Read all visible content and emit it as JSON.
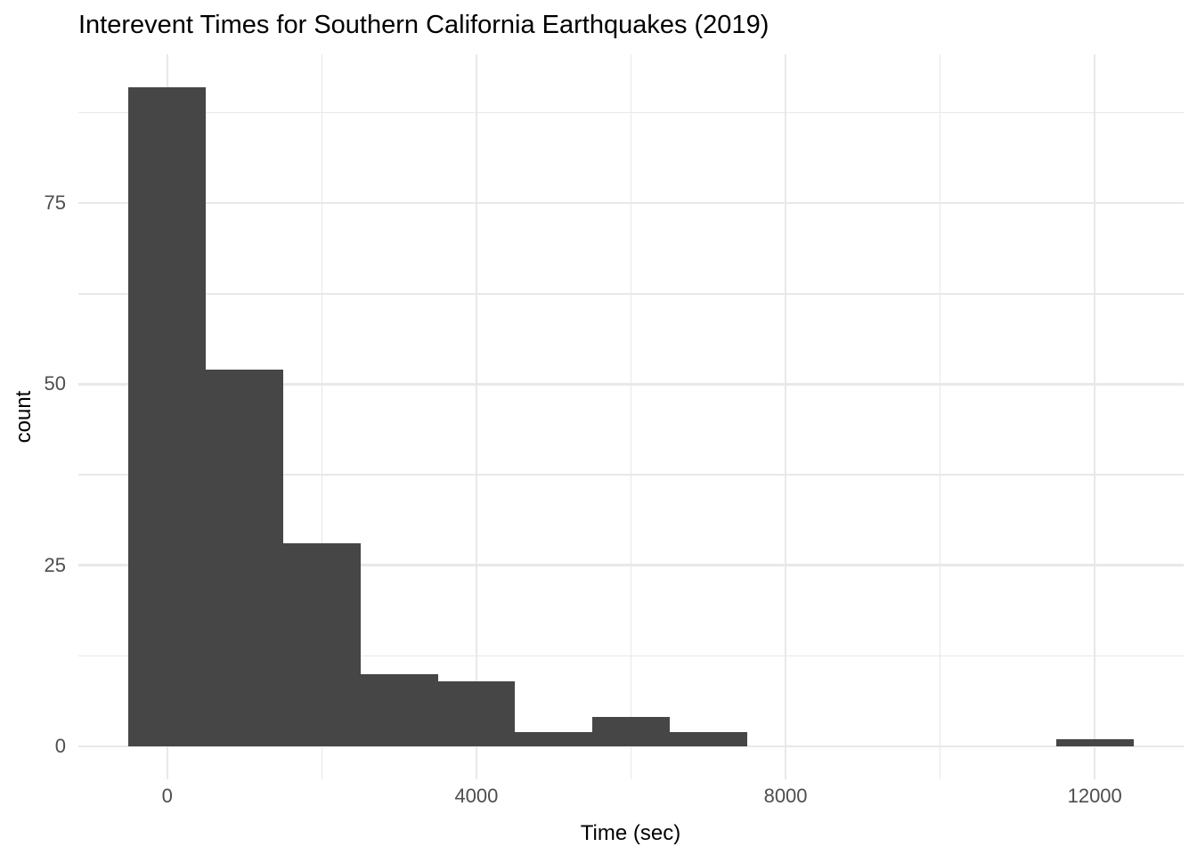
{
  "chart_data": {
    "type": "bar",
    "subtype": "histogram",
    "title": "Interevent Times for Southern California Earthquakes (2019)",
    "xlabel": "Time (sec)",
    "ylabel": "count",
    "binwidth": 1000,
    "bin_centers": [
      0,
      1000,
      2000,
      3000,
      4000,
      5000,
      6000,
      7000,
      12000
    ],
    "counts": [
      91,
      52,
      28,
      10,
      9,
      2,
      4,
      2,
      1
    ],
    "total_count": 199,
    "xlim": [
      -1150,
      13150
    ],
    "ylim": [
      -4.55,
      95.55
    ],
    "x_major_ticks": [
      0,
      4000,
      8000,
      12000
    ],
    "x_minor_ticks": [
      2000,
      6000,
      10000
    ],
    "y_major_ticks": [
      0,
      25,
      50,
      75
    ],
    "y_minor_ticks": [
      12.5,
      37.5,
      62.5,
      87.5
    ],
    "grid": "on",
    "legend_position": "none",
    "colors": {
      "bar_fill": "#464646",
      "grid": "#e8e8e8",
      "tick_label": "#4d4d4d",
      "text": "#000000",
      "background": "#ffffff"
    }
  }
}
